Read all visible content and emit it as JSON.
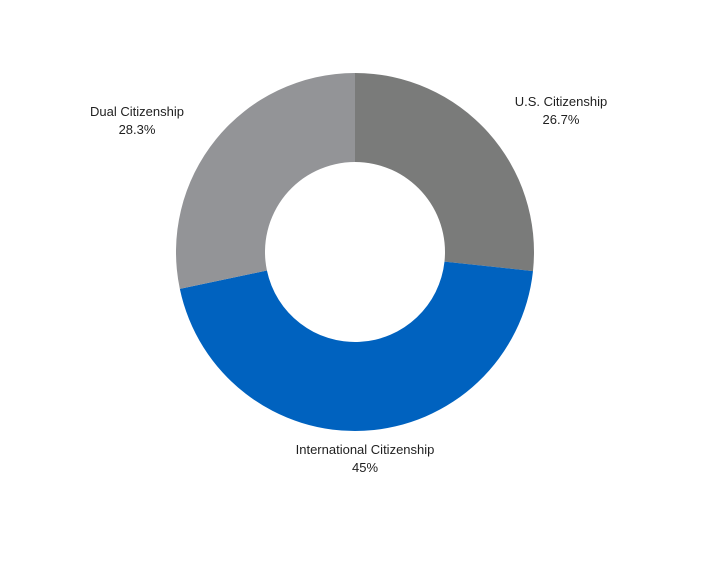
{
  "chart_data": {
    "type": "pie",
    "variant": "donut",
    "slices": [
      {
        "label": "U.S. Citizenship",
        "value": 26.7,
        "value_label": "26.7%",
        "color": "#7a7b7a"
      },
      {
        "label": "International Citizenship",
        "value": 45,
        "value_label": "45%",
        "color": "#0062bf"
      },
      {
        "label": "Dual Citizenship",
        "value": 28.3,
        "value_label": "28.3%",
        "color": "#939497"
      }
    ],
    "title": "",
    "legend": "none"
  }
}
